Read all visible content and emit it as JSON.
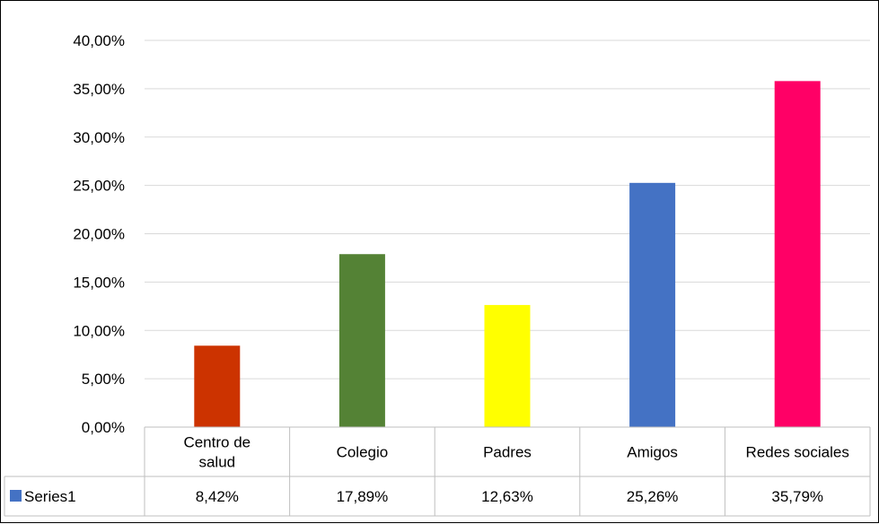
{
  "chart_data": {
    "type": "bar",
    "categories": [
      [
        "Centro de",
        "salud"
      ],
      [
        "Colegio"
      ],
      [
        "Padres"
      ],
      [
        "Amigos"
      ],
      [
        "Redes sociales"
      ]
    ],
    "series": [
      {
        "name": "Series1",
        "values": [
          8.42,
          17.89,
          12.63,
          25.26,
          35.79
        ],
        "labels": [
          "8,42%",
          "17,89%",
          "12,63%",
          "25,26%",
          "35,79%"
        ],
        "colors": [
          "#cc3300",
          "#548235",
          "#ffff00",
          "#4472c4",
          "#ff0066"
        ]
      }
    ],
    "y_ticks": [
      "0,00%",
      "5,00%",
      "10,00%",
      "15,00%",
      "20,00%",
      "25,00%",
      "30,00%",
      "35,00%",
      "40,00%"
    ],
    "ylim": [
      0,
      40
    ],
    "grid": true,
    "legend": "data-table",
    "series_legend_color": "#4472c4"
  }
}
